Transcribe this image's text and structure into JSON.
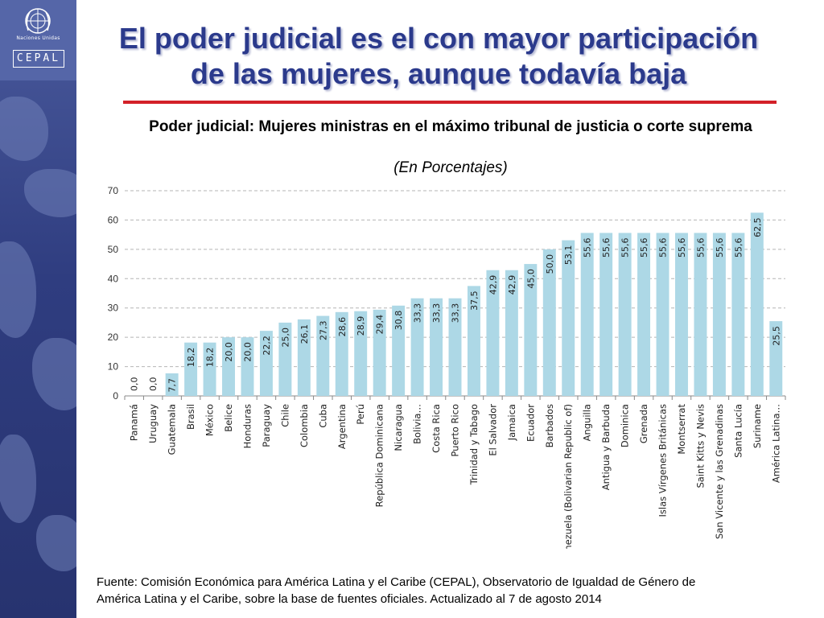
{
  "header": {
    "title_line1": "El poder judicial es el con mayor participación",
    "title_line2": "de las mujeres, aunque todavía baja",
    "accent_color": "#d32028",
    "title_color": "#2b3a8c"
  },
  "logos": {
    "un_label": "Naciones Unidas",
    "cepal_label": "CEPAL",
    "un_icon": "un-emblem-icon"
  },
  "chart_heading": {
    "title": "Poder judicial: Mujeres ministras en el máximo tribunal de justicia o corte suprema",
    "subtitle": "(En Porcentajes)"
  },
  "chart_data": {
    "type": "bar",
    "title": "Poder judicial: Mujeres ministras en el máximo tribunal de justicia o corte suprema",
    "subtitle": "(En Porcentajes)",
    "xlabel": "",
    "ylabel": "",
    "ylim": [
      0,
      70
    ],
    "yticks": [
      0,
      10,
      20,
      30,
      40,
      50,
      60,
      70
    ],
    "grid": true,
    "legend": "none",
    "bar_color": "#add8e6",
    "highlight_color": "#7b5ea7",
    "highlight_index": 35,
    "categories": [
      "Panamá",
      "Uruguay",
      "Guatemala",
      "Brasil",
      "México",
      "Belice",
      "Honduras",
      "Paraguay",
      "Chile",
      "Colombia",
      "Cuba",
      "Argentina",
      "Perú",
      "República Dominicana",
      "Nicaragua",
      "Bolivia…",
      "Costa Rica",
      "Puerto Rico",
      "Trinidad y Tabago",
      "El Salvador",
      "Jamaica",
      "Ecuador",
      "Barbados",
      "Venezuela (Bolivarian Republic of)",
      "Anguilla",
      "Antigua y Barbuda",
      "Dominica",
      "Grenada",
      "Islas Vírgenes Británicas",
      "Montserrat",
      "Saint Kitts y Nevis",
      "San Vicente y las Grenadinas",
      "Santa Lucía",
      "Suriname",
      "América Latina…"
    ],
    "values": [
      0.0,
      0.0,
      7.7,
      18.2,
      18.2,
      20.0,
      20.0,
      22.2,
      25.0,
      26.1,
      27.3,
      28.6,
      28.9,
      29.4,
      30.8,
      33.3,
      33.3,
      33.3,
      37.5,
      42.9,
      42.9,
      45.0,
      50.0,
      53.1,
      55.6,
      55.6,
      55.6,
      55.6,
      55.6,
      55.6,
      55.6,
      55.6,
      55.6,
      62.5,
      25.5
    ],
    "value_labels": [
      "0,0",
      "0,0",
      "7,7",
      "18,2",
      "18,2",
      "20,0",
      "20,0",
      "22,2",
      "25,0",
      "26,1",
      "27,3",
      "28,6",
      "28,9",
      "29,4",
      "30,8",
      "33,3",
      "33,3",
      "33,3",
      "37,5",
      "42,9",
      "42,9",
      "45,0",
      "50,0",
      "53,1",
      "55,6",
      "55,6",
      "55,6",
      "55,6",
      "55,6",
      "55,6",
      "55,6",
      "55,6",
      "55,6",
      "62,5",
      "25,5"
    ]
  },
  "footer": {
    "source_line1": "Fuente: Comisión Económica para América Latina y el Caribe (CEPAL), Observatorio de Igualdad de Género de",
    "source_line2": "América Latina y el Caribe, sobre la base de fuentes oficiales. Actualizado al 7 de agosto 2014"
  }
}
